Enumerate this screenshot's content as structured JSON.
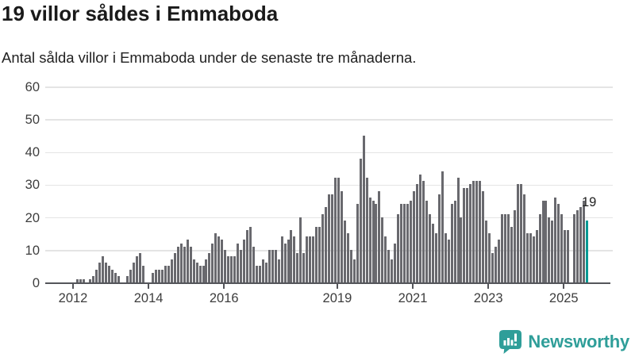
{
  "header": {
    "title": "19 villor såldes i Emmaboda",
    "subtitle": "Antal sålda villor i Emmaboda under de senaste tre månaderna."
  },
  "chart_data": {
    "type": "bar",
    "title": "19 villor såldes i Emmaboda",
    "subtitle": "Antal sålda villor i Emmaboda under de senaste tre månaderna.",
    "x": {
      "start": "2012-02",
      "frequency": "monthly",
      "tick_labels": [
        "2012",
        "2014",
        "2016",
        "2019",
        "2021",
        "2023",
        "2025"
      ]
    },
    "ylabel": "",
    "xlabel": "",
    "ylim": [
      0,
      60
    ],
    "y_ticks": [
      0,
      10,
      20,
      30,
      40,
      50,
      60
    ],
    "grid": true,
    "legend": false,
    "values": [
      1,
      1,
      1,
      0,
      1,
      2,
      4,
      6,
      8,
      6,
      5,
      4,
      3,
      2,
      0,
      0,
      2,
      4,
      6,
      8,
      9,
      5,
      0,
      0,
      3,
      4,
      4,
      4,
      5,
      5,
      7,
      9,
      11,
      12,
      11,
      13,
      11,
      7,
      6,
      5,
      5,
      7,
      9,
      12,
      15,
      14,
      13,
      10,
      8,
      8,
      8,
      12,
      10,
      13,
      16,
      17,
      11,
      5,
      5,
      7,
      6,
      10,
      10,
      10,
      7,
      14,
      12,
      13,
      16,
      14,
      9,
      20,
      9,
      14,
      14,
      14,
      17,
      17,
      21,
      23,
      27,
      27,
      32,
      32,
      28,
      19,
      15,
      10,
      7,
      24,
      38,
      45,
      32,
      26,
      25,
      24,
      28,
      20,
      14,
      10,
      7,
      12,
      21,
      24,
      24,
      24,
      25,
      28,
      30,
      33,
      31,
      25,
      21,
      18,
      15,
      27,
      34,
      15,
      13,
      24,
      25,
      32,
      20,
      29,
      29,
      30,
      31,
      31,
      31,
      28,
      19,
      15,
      9,
      11,
      13,
      21,
      21,
      21,
      17,
      22,
      30,
      30,
      27,
      15,
      15,
      14,
      16,
      21,
      25,
      25,
      20,
      19,
      26,
      24,
      21,
      16,
      16,
      0,
      21,
      22,
      23,
      25,
      19
    ],
    "highlight_last": {
      "value": 19,
      "label": "19"
    },
    "colors": {
      "bar": "#69696e",
      "highlight": "#009a94",
      "grid": "#e4e4e4",
      "axis": "#54555a",
      "tick_text": "#3d3d3d",
      "annotation_text": "#222222",
      "brand": "#2f9e99"
    }
  },
  "footer": {
    "brand": "Newsworthy"
  }
}
